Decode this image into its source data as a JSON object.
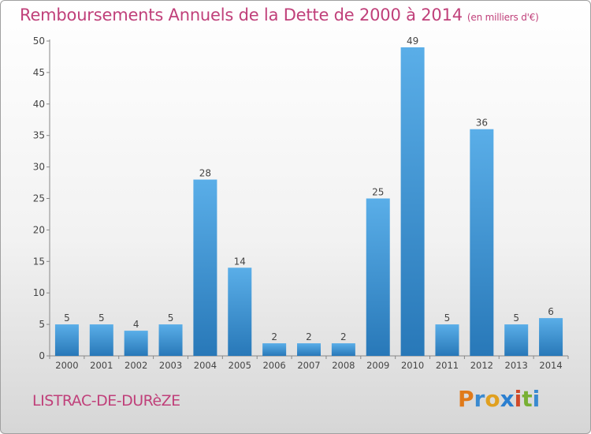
{
  "title": "Remboursements Annuels de la Dette de 2000 à 2014",
  "subtitle": "(en milliers d'€)",
  "commune": "LISTRAC-DE-DURèZE",
  "brand": "Proxiti",
  "colors": {
    "title": "#c0407a",
    "bar_top": "#5aaee8",
    "bar_bottom": "#2878b8",
    "axis": "#555555"
  },
  "chart_data": {
    "type": "bar",
    "title": "Remboursements Annuels de la Dette de 2000 à 2014",
    "subtitle": "(en milliers d'€)",
    "xlabel": "",
    "ylabel": "",
    "categories": [
      "2000",
      "2001",
      "2002",
      "2003",
      "2004",
      "2005",
      "2006",
      "2007",
      "2008",
      "2009",
      "2010",
      "2011",
      "2012",
      "2013",
      "2014"
    ],
    "values": [
      5,
      5,
      4,
      5,
      28,
      14,
      2,
      2,
      2,
      25,
      49,
      5,
      36,
      5,
      6
    ],
    "ylim": [
      0,
      50
    ],
    "yticks": [
      0,
      5,
      10,
      15,
      20,
      25,
      30,
      35,
      40,
      45,
      50
    ],
    "grid": false,
    "data_labels": true
  }
}
